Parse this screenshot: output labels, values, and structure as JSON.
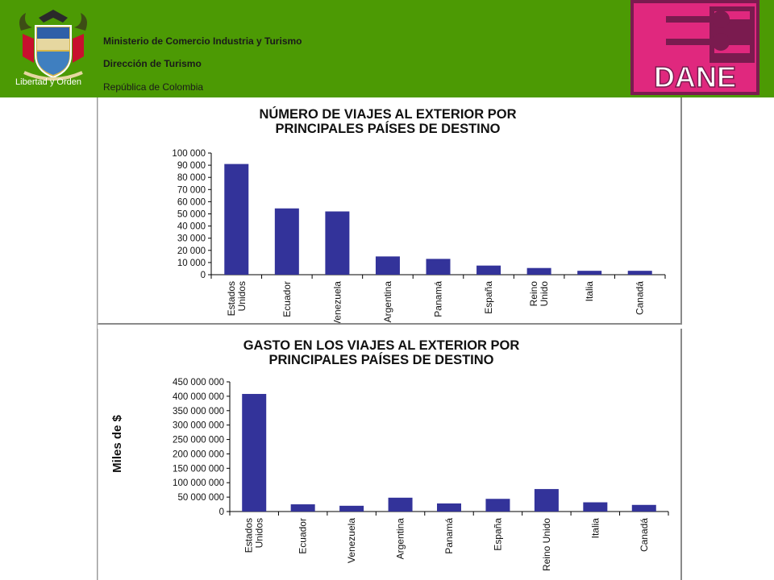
{
  "header": {
    "ministry": "Ministerio de Comercio Industria y Turismo",
    "direction": "Dirección de Turismo",
    "country": "República de Colombia",
    "crest_motto": "Libertad y Orden",
    "logo_text": "DANE",
    "colors": {
      "band": "#4c9a04",
      "dane_magenta": "#e0287e",
      "dane_border": "#7a1b4f"
    }
  },
  "chart_data": [
    {
      "type": "bar",
      "title_lines": [
        "NÚMERO DE VIAJES AL EXTERIOR POR",
        "PRINCIPALES PAÍSES DE DESTINO"
      ],
      "categories": [
        [
          "Estados",
          "Unidos"
        ],
        [
          "Ecuador"
        ],
        [
          "Venezuela"
        ],
        [
          "Argentina"
        ],
        [
          "Panamá"
        ],
        [
          "España"
        ],
        [
          "Reino",
          "Unido"
        ],
        [
          "Italia"
        ],
        [
          "Canadá"
        ]
      ],
      "values": [
        91000,
        54500,
        52000,
        15000,
        13000,
        7500,
        5500,
        3200,
        3200
      ],
      "ylabel": "",
      "ylim": [
        0,
        100000
      ],
      "yticks": [
        "0",
        "10 000",
        "20 000",
        "30 000",
        "40 000",
        "50 000",
        "60 000",
        "70 000",
        "80 000",
        "90 000",
        "100 000"
      ],
      "bar_color": "#33339a",
      "grid": false
    },
    {
      "type": "bar",
      "title_lines": [
        "GASTO EN LOS VIAJES AL EXTERIOR POR",
        "PRINCIPALES PAÍSES DE DESTINO"
      ],
      "categories": [
        [
          "Estados",
          "Unidos"
        ],
        [
          "Ecuador"
        ],
        [
          "Venezuela"
        ],
        [
          "Argentina"
        ],
        [
          "Panamá"
        ],
        [
          "España"
        ],
        [
          "Reino Unido"
        ],
        [
          "Italia"
        ],
        [
          "Canadá"
        ]
      ],
      "values": [
        408000000,
        25000000,
        20000000,
        48000000,
        28000000,
        44000000,
        78000000,
        32000000,
        23000000
      ],
      "ylabel": "Miles de $",
      "ylim": [
        0,
        450000000
      ],
      "yticks": [
        "0",
        "50 000 000",
        "100 000 000",
        "150 000 000",
        "200 000 000",
        "250 000 000",
        "300 000 000",
        "350 000 000",
        "400 000 000",
        "450 000 000"
      ],
      "bar_color": "#33339a",
      "grid": false
    }
  ]
}
